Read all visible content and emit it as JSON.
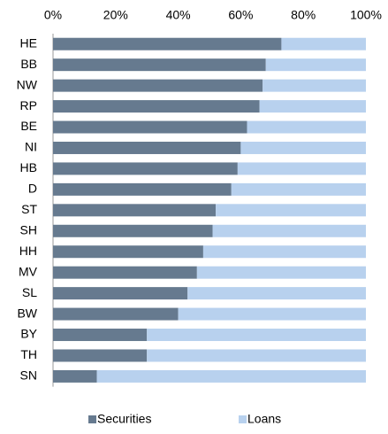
{
  "chart_data": {
    "type": "stacked_barh",
    "categories": [
      "HE",
      "BB",
      "NW",
      "RP",
      "BE",
      "NI",
      "HB",
      "D",
      "ST",
      "SH",
      "HH",
      "MV",
      "SL",
      "BW",
      "BY",
      "TH",
      "SN"
    ],
    "series": [
      {
        "name": "Securities",
        "color": "#667a8f",
        "values": [
          73,
          68,
          67,
          66,
          62,
          60,
          59,
          57,
          52,
          51,
          48,
          46,
          43,
          40,
          30,
          30,
          14
        ]
      },
      {
        "name": "Loans",
        "color": "#b8d1ee",
        "values": [
          27,
          32,
          33,
          34,
          38,
          40,
          41,
          43,
          48,
          49,
          52,
          54,
          57,
          60,
          70,
          70,
          86
        ]
      }
    ],
    "xlim": [
      0,
      100
    ],
    "xticks": [
      {
        "value": 0,
        "label": "0%"
      },
      {
        "value": 20,
        "label": "20%"
      },
      {
        "value": 40,
        "label": "40%"
      },
      {
        "value": 60,
        "label": "60%"
      },
      {
        "value": 80,
        "label": "80%"
      },
      {
        "value": 100,
        "label": "100%"
      }
    ],
    "legend": "bottom"
  }
}
